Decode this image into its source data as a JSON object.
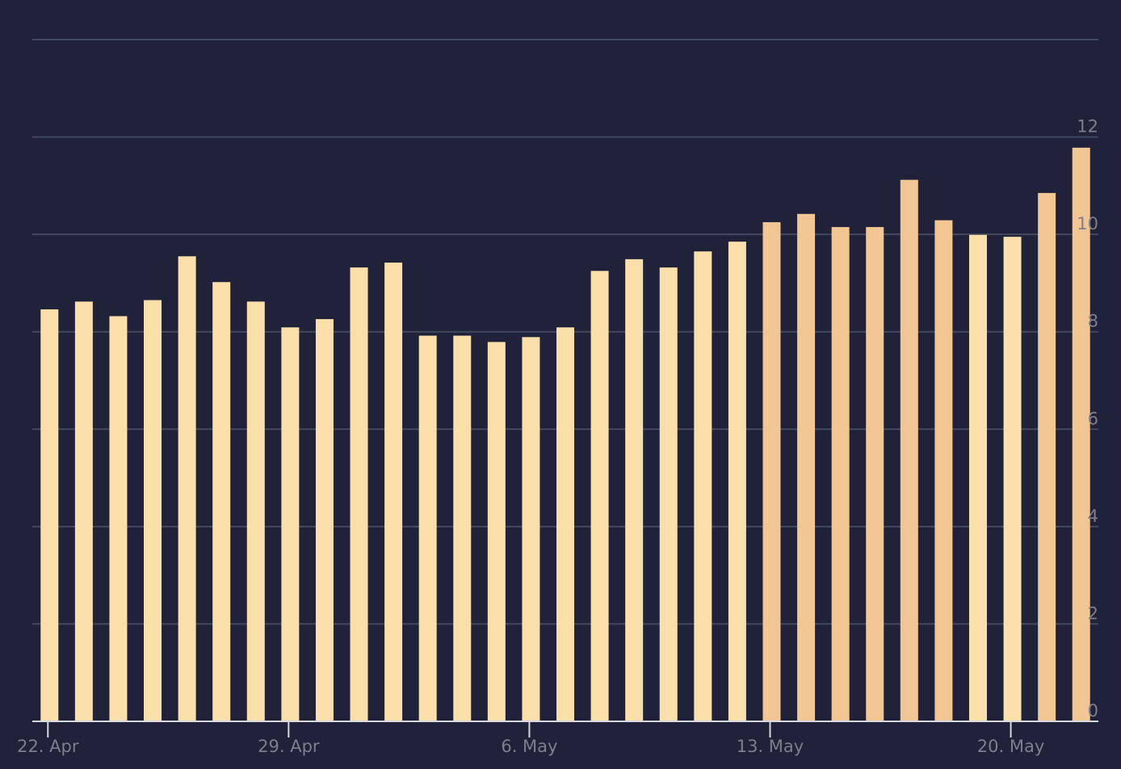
{
  "chart_data": {
    "type": "bar",
    "categories": [
      "22. Apr",
      null,
      null,
      null,
      null,
      null,
      null,
      "29. Apr",
      null,
      null,
      null,
      null,
      null,
      null,
      "6. May",
      null,
      null,
      null,
      null,
      null,
      null,
      "13. May",
      null,
      null,
      null,
      null,
      null,
      null,
      "20. May",
      null,
      null
    ],
    "values": [
      8.46,
      8.62,
      8.32,
      8.65,
      9.55,
      9.02,
      8.62,
      8.09,
      8.26,
      9.32,
      9.42,
      7.92,
      7.92,
      7.79,
      7.89,
      8.09,
      9.25,
      9.49,
      9.32,
      9.65,
      9.85,
      10.25,
      10.42,
      10.15,
      10.15,
      11.12,
      10.29,
      9.99,
      9.95,
      10.85,
      11.78
    ],
    "colors": [
      "#fbdfab",
      "#fbdfab",
      "#fbdfab",
      "#fbdfab",
      "#fbdfab",
      "#fbdfab",
      "#fbdfab",
      "#fbdfab",
      "#fbdfab",
      "#fbdfab",
      "#fbdfab",
      "#fbdfab",
      "#fbdfab",
      "#fbdfab",
      "#fbdfab",
      "#fbdfab",
      "#fbdfab",
      "#fbdfab",
      "#fbdfab",
      "#fbdfab",
      "#fbdfab",
      "#f2c692",
      "#f2c692",
      "#f2c692",
      "#f2c692",
      "#f2c692",
      "#f2c692",
      "#fbdfab",
      "#fbdfab",
      "#f2c692",
      "#f2c692"
    ],
    "ylim": [
      0,
      14
    ],
    "yticks": [
      0,
      2,
      4,
      6,
      8,
      10,
      12
    ],
    "grid": true
  }
}
